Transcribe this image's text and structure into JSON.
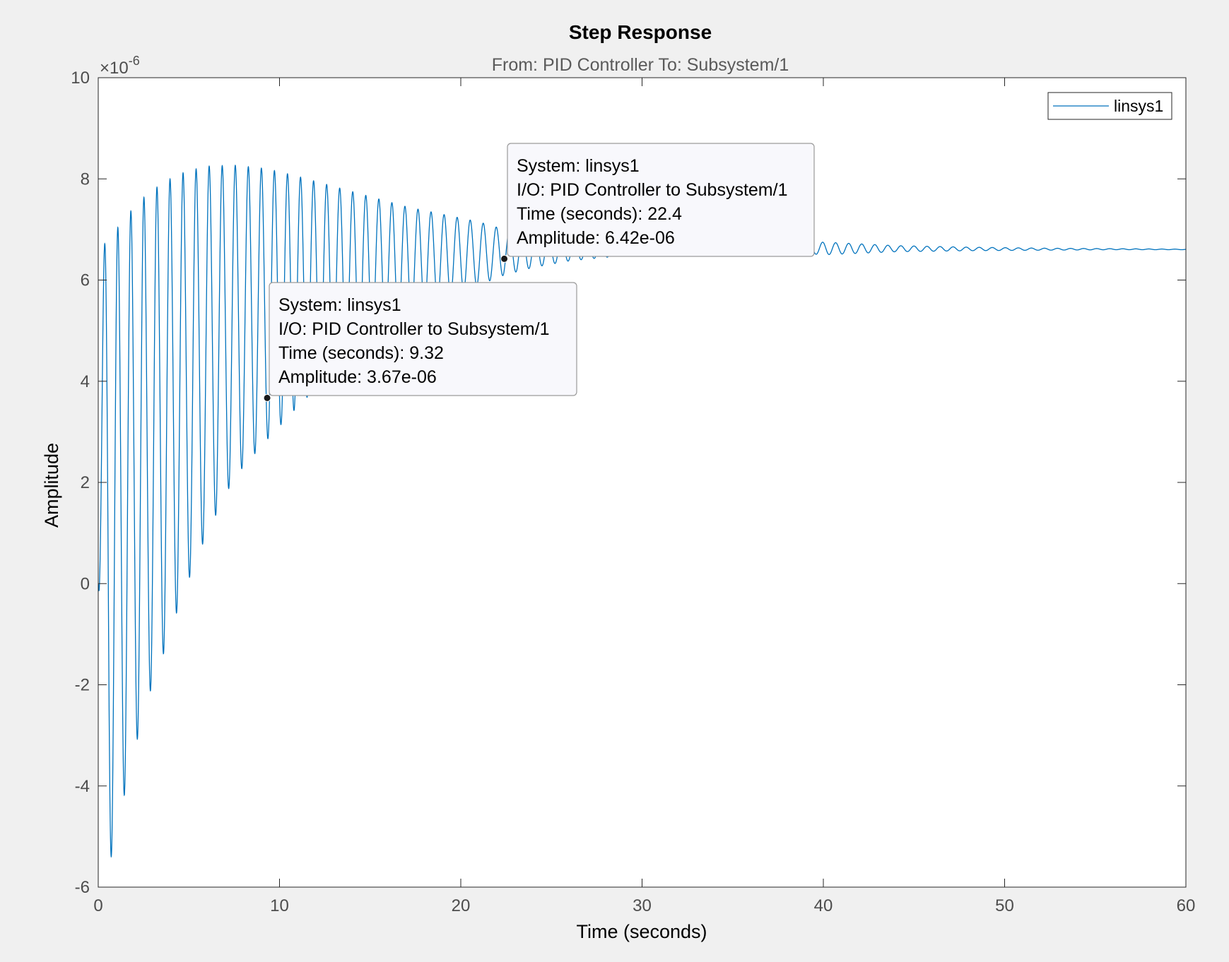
{
  "chart_data": {
    "type": "line",
    "title": "Step Response",
    "subtitle": "From: PID Controller  To: Subsystem/1",
    "xlabel": "Time (seconds)",
    "ylabel": "Amplitude",
    "xlim": [
      0,
      60
    ],
    "ylim": [
      -6,
      10
    ],
    "y_exponent_label": "×10",
    "y_exponent_power": "-6",
    "x_ticks": [
      "0",
      "10",
      "20",
      "30",
      "40",
      "50",
      "60"
    ],
    "y_ticks": [
      "10",
      "8",
      "6",
      "4",
      "2",
      "0",
      "-2",
      "-4",
      "-6"
    ],
    "legend": {
      "entries": [
        "linsys1"
      ],
      "placement": "top-right"
    },
    "series_color": "#0072bd",
    "series": [
      {
        "name": "linsys1",
        "model": "damped oscillation: y = 6.6 - A(t)·cos(2π·t/0.72), amplitude in units of 1e-6",
        "envelope": {
          "t": [
            0,
            0.6,
            1.3,
            2.0,
            2.7,
            3.5,
            4.2,
            4.9,
            6.0,
            7.5,
            9.32,
            11,
            13,
            15,
            17,
            19,
            21,
            22.4,
            24,
            26,
            28,
            30,
            32,
            35,
            38,
            40,
            44,
            48,
            52,
            56,
            60
          ],
          "upper": [
            6.6,
            6.8,
            7.15,
            7.45,
            7.7,
            7.9,
            8.05,
            8.15,
            8.25,
            8.27,
            8.2,
            8.05,
            7.85,
            7.65,
            7.45,
            7.3,
            7.15,
            7.0,
            6.9,
            6.82,
            6.75,
            6.72,
            6.7,
            6.68,
            6.66,
            6.75,
            6.68,
            6.65,
            6.63,
            6.62,
            6.61
          ],
          "lower": [
            0.0,
            -5.6,
            -4.4,
            -3.3,
            -2.3,
            -1.5,
            -0.7,
            0.0,
            1.0,
            2.1,
            2.85,
            3.5,
            4.2,
            4.75,
            5.2,
            5.6,
            5.9,
            6.1,
            6.25,
            6.38,
            6.45,
            6.5,
            6.52,
            6.54,
            6.55,
            6.5,
            6.56,
            6.58,
            6.59,
            6.6,
            6.6
          ]
        },
        "steady_state": 6.6
      }
    ],
    "datatips": [
      {
        "system": "System: linsys1",
        "io": "I/O: PID Controller to Subsystem/1",
        "time": "Time (seconds): 22.4",
        "amplitude": "Amplitude: 6.42e-06",
        "x": 22.4,
        "y": 6.42
      },
      {
        "system": "System: linsys1",
        "io": "I/O: PID Controller to Subsystem/1",
        "time": "Time (seconds): 9.32",
        "amplitude": "Amplitude: 3.67e-06",
        "x": 9.32,
        "y": 3.67
      }
    ]
  }
}
